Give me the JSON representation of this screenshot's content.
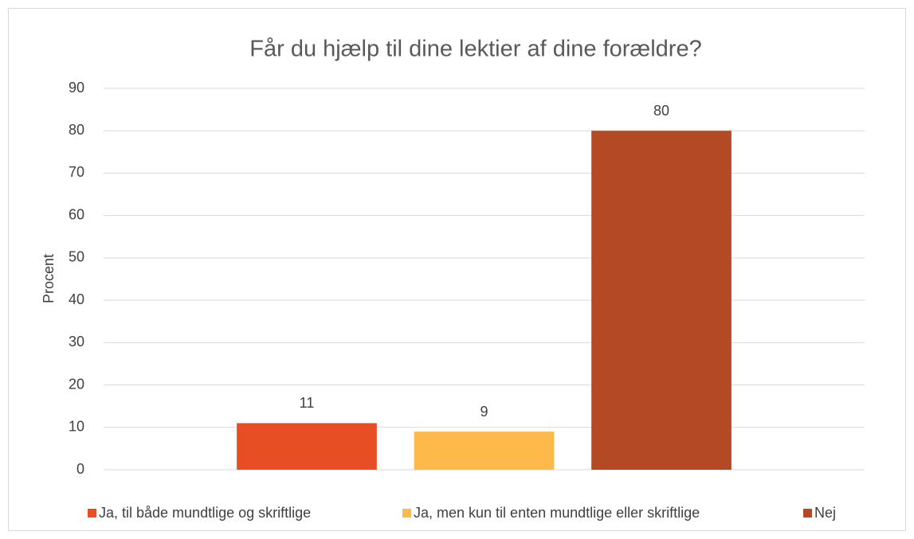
{
  "chart_data": {
    "type": "bar",
    "title": "Får du hjælp til dine lektier af dine forældre?",
    "y_label": "Procent",
    "categories": [
      null
    ],
    "series": [
      {
        "name": "Ja, til både mundtlige og skriftlige",
        "color": "#e84e24",
        "values": [
          11
        ]
      },
      {
        "name": "Ja, men kun til enten mundtlige eller skriftlige",
        "color": "#fdb94a",
        "values": [
          9
        ]
      },
      {
        "name": "Nej",
        "color": "#b34a25",
        "values": [
          80
        ]
      }
    ],
    "ylim": [
      0,
      90
    ],
    "yticks": [
      0,
      10,
      20,
      30,
      40,
      50,
      60,
      70,
      80,
      90
    ],
    "grid": true,
    "legend": "bottom",
    "data_labels": true
  }
}
